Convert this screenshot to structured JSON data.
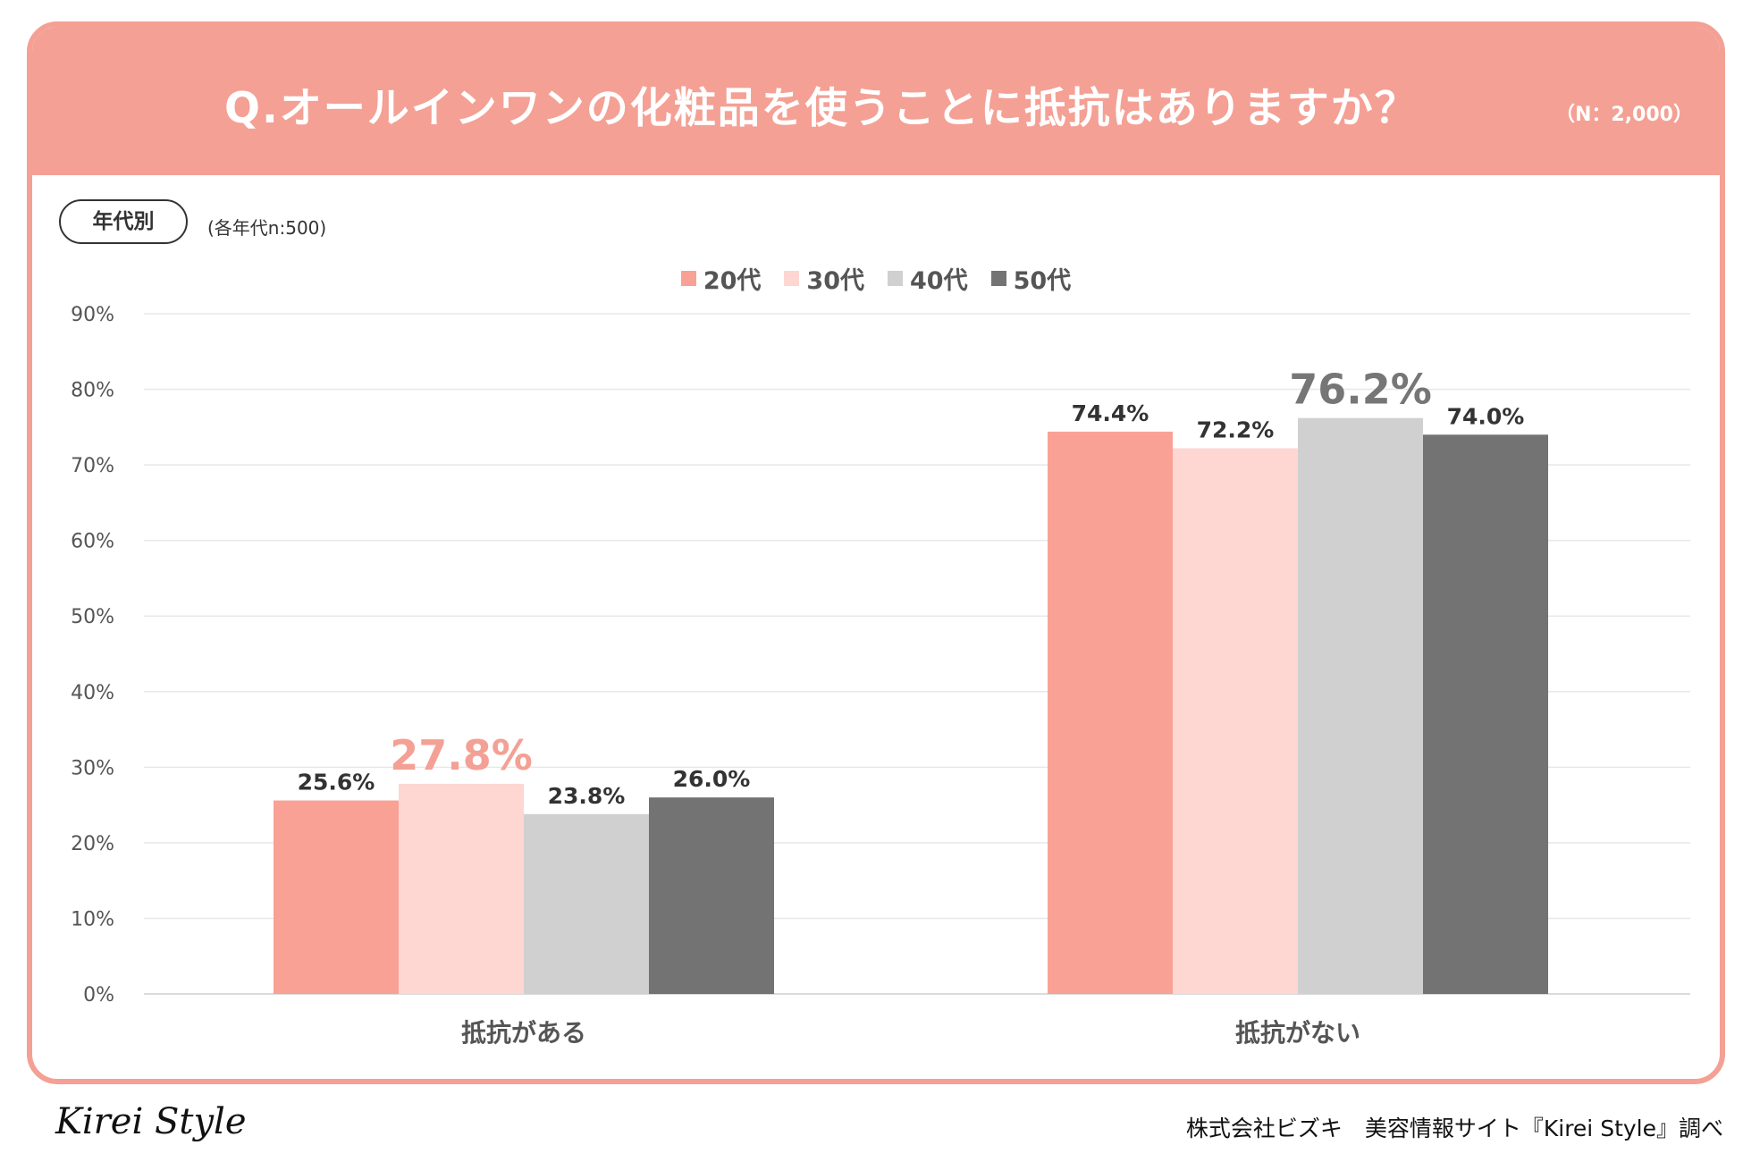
{
  "header": {
    "title": "Q.オールインワンの化粧品を使うことに抵抗はありますか？",
    "sample_total": "（N：2,000）"
  },
  "filter": {
    "pill_label": "年代別",
    "sample_note": "(各年代n:500)"
  },
  "colors": {
    "accent": "#f4a094",
    "s20": "#f9a195",
    "s30": "#fed6d2",
    "s40": "#d0d0d0",
    "s50": "#737373",
    "highlight_text": "#f4a094",
    "gray_highlight_text": "#767676"
  },
  "chart_data": {
    "type": "bar",
    "title": "Q.オールインワンの化粧品を使うことに抵抗はありますか？",
    "categories": [
      "抵抗がある",
      "抵抗がない"
    ],
    "series": [
      {
        "name": "20代",
        "values": [
          25.6,
          74.4
        ]
      },
      {
        "name": "30代",
        "values": [
          27.8,
          72.2
        ]
      },
      {
        "name": "40代",
        "values": [
          23.8,
          76.2
        ]
      },
      {
        "name": "50代",
        "values": [
          26.0,
          74.0
        ]
      }
    ],
    "value_labels": [
      [
        "25.6%",
        "74.4%"
      ],
      [
        "27.8%",
        "72.2%"
      ],
      [
        "23.8%",
        "76.2%"
      ],
      [
        "26.0%",
        "74.0%"
      ]
    ],
    "highlights": [
      {
        "category": 0,
        "series": 1
      },
      {
        "category": 1,
        "series": 2
      }
    ],
    "y_ticks": [
      "0%",
      "10%",
      "20%",
      "30%",
      "40%",
      "50%",
      "60%",
      "70%",
      "80%",
      "90%"
    ],
    "ylim": [
      0,
      90
    ],
    "xlabel": "",
    "ylabel": "",
    "grid": true,
    "legend": "top-center"
  },
  "footer": {
    "logo": "Kirei Style",
    "credit": "株式会社ビズキ　美容情報サイト『Kirei Style』調べ"
  }
}
